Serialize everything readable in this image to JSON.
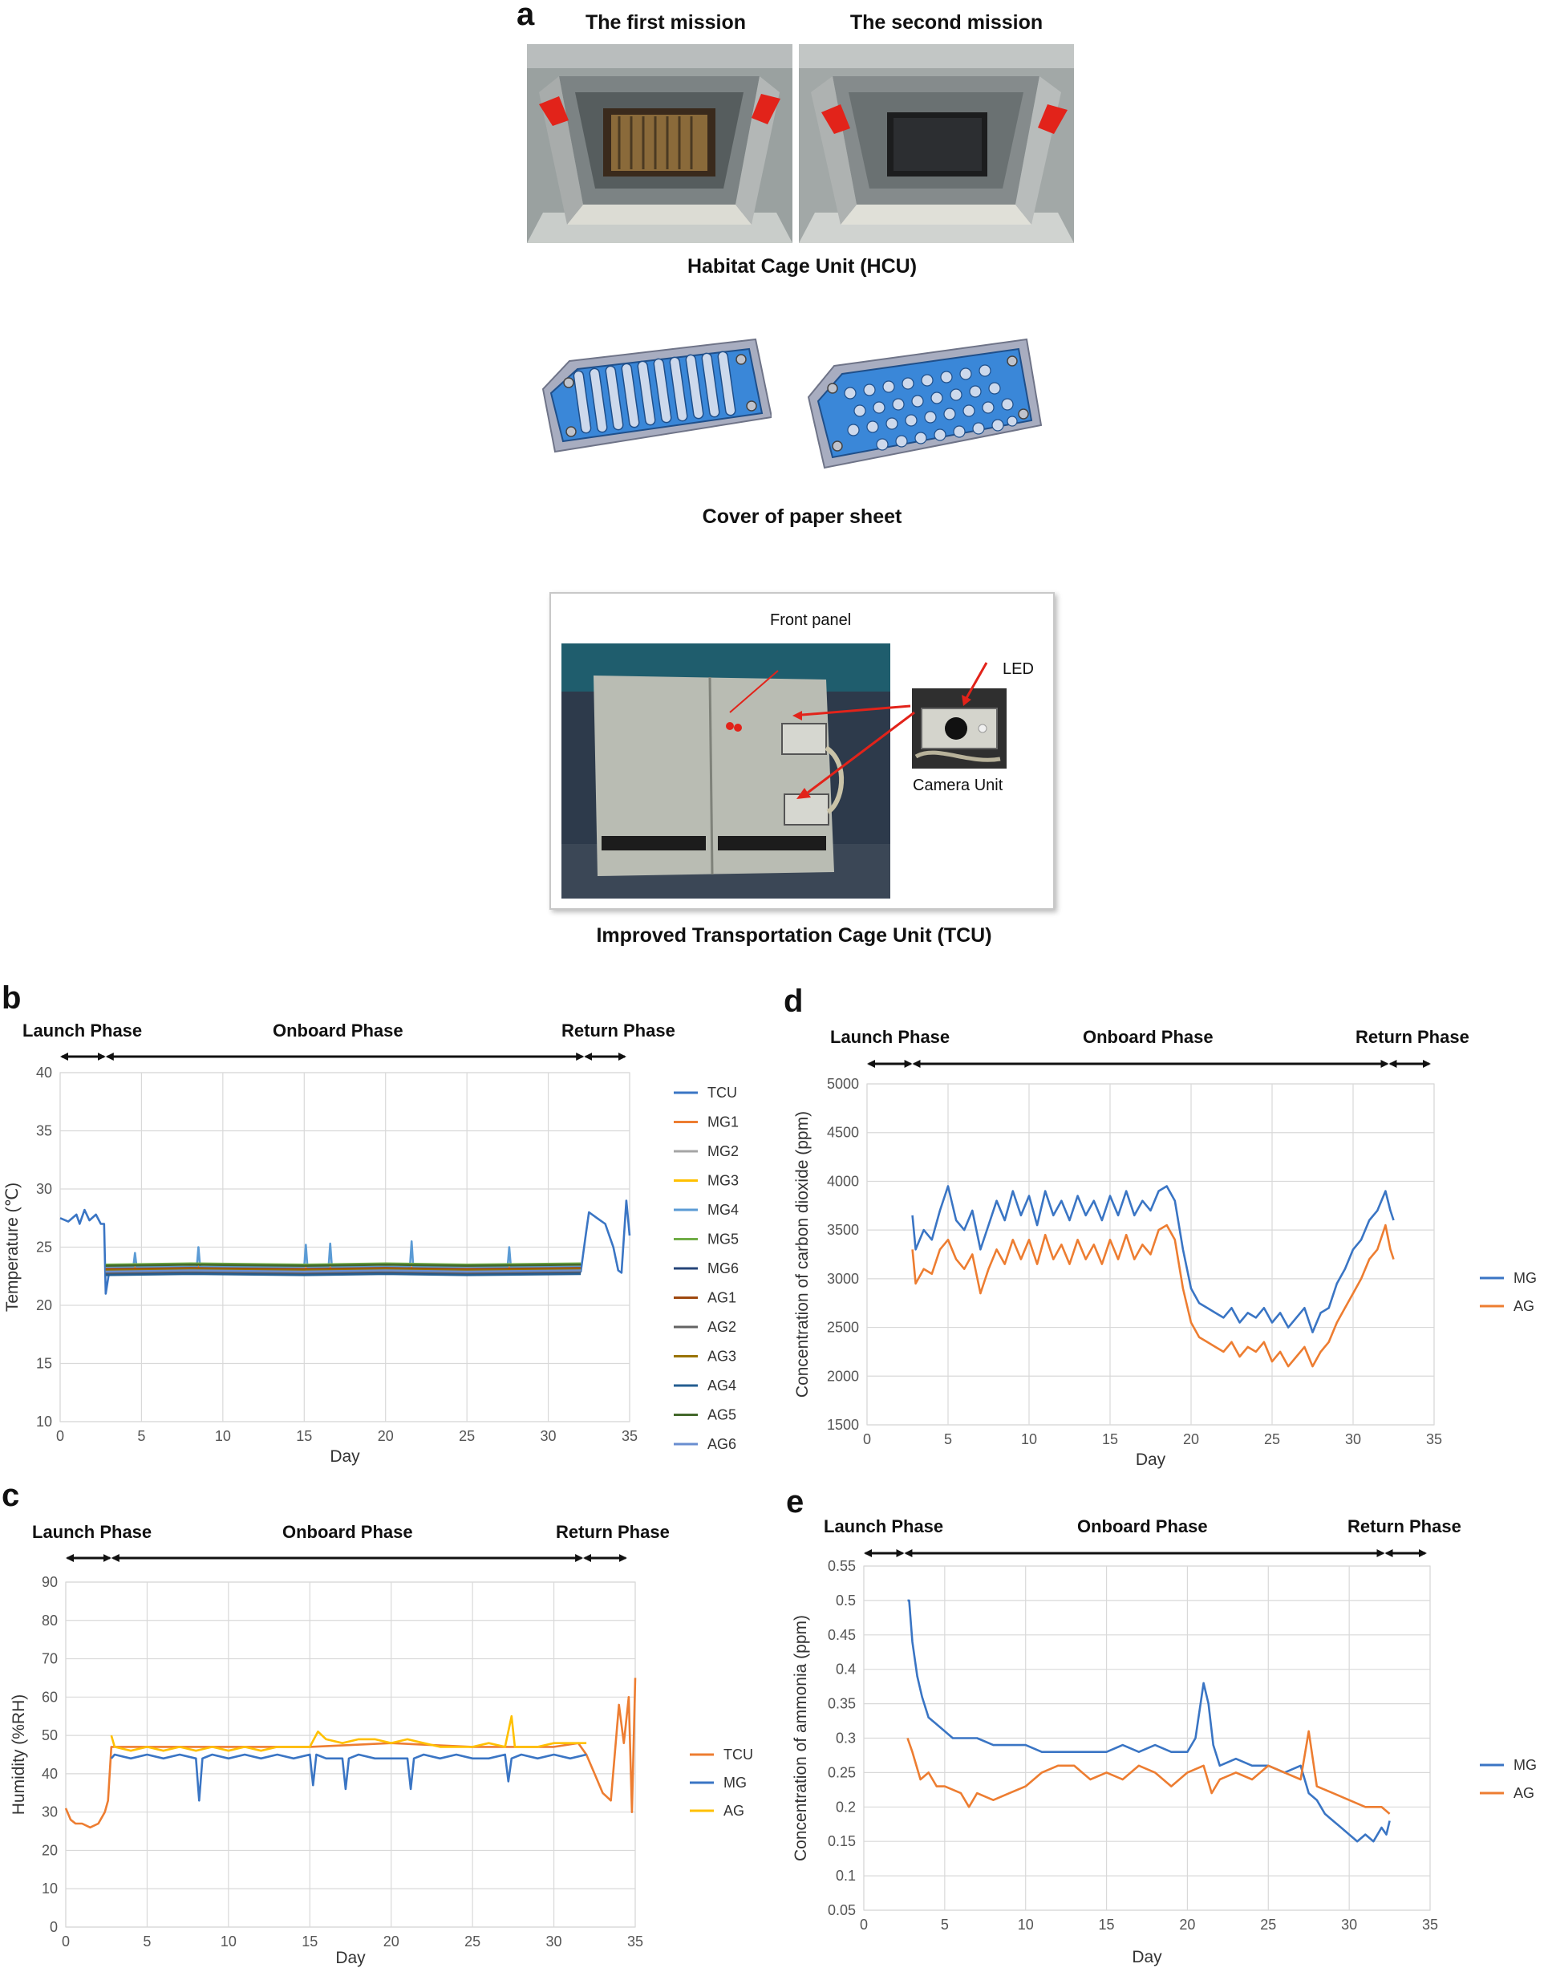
{
  "panel_a": {
    "letter": "a",
    "mission1_title": "The first mission",
    "mission2_title": "The second mission",
    "hcu_caption": "Habitat Cage Unit (HCU)",
    "cover_caption": "Cover of paper sheet",
    "tcu_caption": "Improved Transportation Cage Unit (TCU)",
    "label_front_panel": "Front panel",
    "label_led": "LED",
    "label_camera_unit": "Camera Unit"
  },
  "phases": {
    "launch": "Launch Phase",
    "onboard": "Onboard  Phase",
    "return": "Return Phase"
  },
  "chart_data": [
    {
      "id": "b",
      "letter": "b",
      "type": "line",
      "xlabel": "Day",
      "ylabel": "Temperature (℃)",
      "xlim": [
        0,
        35
      ],
      "ylim": [
        10,
        40
      ],
      "xticks": [
        0,
        5,
        10,
        15,
        20,
        25,
        30,
        35
      ],
      "yticks": [
        10,
        15,
        20,
        25,
        30,
        35,
        40
      ],
      "grid": true,
      "legend": "right",
      "series": [
        {
          "name": "TCU",
          "color": "#3a75c4",
          "x": [
            0,
            0.5,
            1,
            1.2,
            1.5,
            1.8,
            2.2,
            2.5,
            2.7,
            2.8,
            3,
            5,
            10,
            15,
            20,
            25,
            30,
            32,
            32.3,
            32.5,
            33,
            33.5,
            34,
            34.3,
            34.5,
            34.8,
            35
          ],
          "y": [
            27.5,
            27.2,
            27.8,
            27.0,
            28.2,
            27.3,
            27.8,
            27.0,
            27.0,
            21.0,
            22.8,
            22.9,
            22.8,
            22.9,
            22.8,
            22.9,
            22.8,
            22.9,
            26.0,
            28.0,
            27.5,
            27.0,
            25.0,
            23.0,
            22.8,
            29.0,
            26.0
          ]
        },
        {
          "name": "MG1",
          "color": "#ed7d31",
          "x": [
            2.8,
            8,
            15,
            20,
            25,
            32
          ],
          "y": [
            23.2,
            23.3,
            23.2,
            23.3,
            23.2,
            23.3
          ]
        },
        {
          "name": "MG2",
          "color": "#a5a5a5",
          "x": [
            2.8,
            8,
            15,
            20,
            25,
            32
          ],
          "y": [
            23.0,
            23.1,
            23.0,
            23.1,
            23.0,
            23.1
          ]
        },
        {
          "name": "MG3",
          "color": "#ffc000",
          "x": [
            2.8,
            8,
            15,
            20,
            25,
            32
          ],
          "y": [
            22.9,
            23.0,
            22.9,
            23.0,
            22.9,
            23.0
          ]
        },
        {
          "name": "MG4",
          "color": "#5b9bd5",
          "x": [
            2.8,
            4.5,
            4.6,
            4.7,
            8,
            8.4,
            8.5,
            8.6,
            15,
            15.1,
            15.2,
            16.5,
            16.6,
            16.7,
            21.5,
            21.6,
            21.7,
            27.5,
            27.6,
            27.7,
            32
          ],
          "y": [
            23.3,
            23.3,
            24.5,
            23.3,
            23.3,
            23.3,
            25.0,
            23.3,
            23.3,
            25.2,
            23.3,
            23.3,
            25.3,
            23.3,
            23.3,
            25.5,
            23.3,
            23.3,
            25.0,
            23.3,
            23.3
          ]
        },
        {
          "name": "MG5",
          "color": "#70ad47",
          "x": [
            2.8,
            8,
            15,
            20,
            25,
            32
          ],
          "y": [
            23.5,
            23.6,
            23.5,
            23.6,
            23.5,
            23.6
          ]
        },
        {
          "name": "MG6",
          "color": "#264478",
          "x": [
            2.8,
            8,
            15,
            20,
            25,
            32
          ],
          "y": [
            22.7,
            22.8,
            22.7,
            22.8,
            22.7,
            22.8
          ]
        },
        {
          "name": "AG1",
          "color": "#9e480e",
          "x": [
            2.8,
            8,
            15,
            20,
            25,
            32
          ],
          "y": [
            23.1,
            23.2,
            23.1,
            23.2,
            23.1,
            23.2
          ]
        },
        {
          "name": "AG2",
          "color": "#636363",
          "x": [
            2.8,
            8,
            15,
            20,
            25,
            32
          ],
          "y": [
            22.8,
            22.9,
            22.8,
            22.9,
            22.8,
            22.9
          ]
        },
        {
          "name": "AG3",
          "color": "#997300",
          "x": [
            2.8,
            8,
            15,
            20,
            25,
            32
          ],
          "y": [
            23.0,
            23.1,
            23.0,
            23.1,
            23.0,
            23.1
          ]
        },
        {
          "name": "AG4",
          "color": "#255e91",
          "x": [
            2.8,
            8,
            15,
            20,
            25,
            32
          ],
          "y": [
            22.6,
            22.7,
            22.6,
            22.7,
            22.6,
            22.7
          ]
        },
        {
          "name": "AG5",
          "color": "#43682b",
          "x": [
            2.8,
            8,
            15,
            20,
            25,
            32
          ],
          "y": [
            23.4,
            23.5,
            23.4,
            23.5,
            23.4,
            23.5
          ]
        },
        {
          "name": "AG6",
          "color": "#698ed0",
          "x": [
            2.8,
            8,
            15,
            20,
            25,
            32
          ],
          "y": [
            22.9,
            23.0,
            22.9,
            23.0,
            22.9,
            23.0
          ]
        }
      ]
    },
    {
      "id": "c",
      "letter": "c",
      "type": "line",
      "xlabel": "Day",
      "ylabel": "Humidity (%RH)",
      "xlim": [
        0,
        35
      ],
      "ylim": [
        0,
        90
      ],
      "xticks": [
        0,
        5,
        10,
        15,
        20,
        25,
        30,
        35
      ],
      "yticks": [
        0,
        10,
        20,
        30,
        40,
        50,
        60,
        70,
        80,
        90
      ],
      "grid": true,
      "legend": "right",
      "series": [
        {
          "name": "TCU",
          "color": "#ed7d31",
          "x": [
            0,
            0.3,
            0.6,
            1,
            1.5,
            2,
            2.4,
            2.6,
            2.8,
            3,
            5,
            10,
            15,
            20,
            25,
            30,
            31.5,
            32,
            32.5,
            33,
            33.5,
            34,
            34.3,
            34.6,
            34.8,
            35
          ],
          "y": [
            31,
            28,
            27,
            27,
            26,
            27,
            30,
            33,
            47,
            47,
            47,
            47,
            47,
            48,
            47,
            47,
            48,
            45,
            40,
            35,
            33,
            58,
            48,
            60,
            30,
            65
          ]
        },
        {
          "name": "MG",
          "color": "#3a75c4",
          "x": [
            2.8,
            3,
            4,
            5,
            6,
            7,
            8,
            8.2,
            8.4,
            9,
            10,
            11,
            12,
            13,
            14,
            15,
            15.2,
            15.4,
            16,
            17,
            17.2,
            17.4,
            18,
            19,
            20,
            21,
            21.2,
            21.4,
            22,
            23,
            24,
            25,
            26,
            27,
            27.2,
            27.4,
            28,
            29,
            30,
            31,
            32
          ],
          "y": [
            44,
            45,
            44,
            45,
            44,
            45,
            44,
            33,
            44,
            45,
            44,
            45,
            44,
            45,
            44,
            45,
            37,
            45,
            44,
            44,
            36,
            44,
            45,
            44,
            44,
            44,
            36,
            44,
            45,
            44,
            45,
            44,
            44,
            45,
            38,
            44,
            45,
            44,
            45,
            44,
            45
          ]
        },
        {
          "name": "AG",
          "color": "#ffc000",
          "x": [
            2.8,
            3,
            4,
            5,
            6,
            7,
            8,
            9,
            10,
            11,
            12,
            13,
            14,
            15,
            15.5,
            16,
            17,
            18,
            19,
            20,
            21,
            22,
            23,
            24,
            25,
            26,
            27,
            27.4,
            27.6,
            28,
            29,
            30,
            31,
            32
          ],
          "y": [
            50,
            47,
            46,
            47,
            46,
            47,
            46,
            47,
            46,
            47,
            46,
            47,
            47,
            47,
            51,
            49,
            48,
            49,
            49,
            48,
            49,
            48,
            47,
            47,
            47,
            48,
            47,
            55,
            47,
            47,
            47,
            48,
            48,
            48
          ]
        }
      ]
    },
    {
      "id": "d",
      "letter": "d",
      "type": "line",
      "xlabel": "Day",
      "ylabel": "Concentration  of carbon dioxide (ppm)",
      "xlim": [
        0,
        35
      ],
      "ylim": [
        1500,
        5000
      ],
      "xticks": [
        0,
        5,
        10,
        15,
        20,
        25,
        30,
        35
      ],
      "yticks": [
        1500,
        2000,
        2500,
        3000,
        3500,
        4000,
        4500,
        5000
      ],
      "grid": true,
      "legend": "right",
      "series": [
        {
          "name": "MG",
          "color": "#3a75c4",
          "x": [
            2.8,
            3,
            3.5,
            4,
            4.5,
            5,
            5.5,
            6,
            6.5,
            7,
            7.5,
            8,
            8.5,
            9,
            9.5,
            10,
            10.5,
            11,
            11.5,
            12,
            12.5,
            13,
            13.5,
            14,
            14.5,
            15,
            15.5,
            16,
            16.5,
            17,
            17.5,
            18,
            18.5,
            19,
            19.5,
            20,
            20.5,
            21,
            21.5,
            22,
            22.5,
            23,
            23.5,
            24,
            24.5,
            25,
            25.5,
            26,
            26.5,
            27,
            27.5,
            28,
            28.5,
            29,
            29.5,
            30,
            30.5,
            31,
            31.5,
            32,
            32.3,
            32.5
          ],
          "y": [
            3650,
            3300,
            3500,
            3400,
            3700,
            3950,
            3600,
            3500,
            3700,
            3300,
            3550,
            3800,
            3600,
            3900,
            3650,
            3850,
            3550,
            3900,
            3650,
            3800,
            3600,
            3850,
            3650,
            3800,
            3600,
            3850,
            3650,
            3900,
            3650,
            3800,
            3700,
            3900,
            3950,
            3800,
            3300,
            2900,
            2750,
            2700,
            2650,
            2600,
            2700,
            2550,
            2650,
            2600,
            2700,
            2550,
            2650,
            2500,
            2600,
            2700,
            2450,
            2650,
            2700,
            2950,
            3100,
            3300,
            3400,
            3600,
            3700,
            3900,
            3700,
            3600
          ]
        },
        {
          "name": "AG",
          "color": "#ed7d31",
          "x": [
            2.8,
            3,
            3.5,
            4,
            4.5,
            5,
            5.5,
            6,
            6.5,
            7,
            7.5,
            8,
            8.5,
            9,
            9.5,
            10,
            10.5,
            11,
            11.5,
            12,
            12.5,
            13,
            13.5,
            14,
            14.5,
            15,
            15.5,
            16,
            16.5,
            17,
            17.5,
            18,
            18.5,
            19,
            19.5,
            20,
            20.5,
            21,
            21.5,
            22,
            22.5,
            23,
            23.5,
            24,
            24.5,
            25,
            25.5,
            26,
            26.5,
            27,
            27.5,
            28,
            28.5,
            29,
            29.5,
            30,
            30.5,
            31,
            31.5,
            32,
            32.3,
            32.5
          ],
          "y": [
            3300,
            2950,
            3100,
            3050,
            3300,
            3400,
            3200,
            3100,
            3250,
            2850,
            3100,
            3300,
            3150,
            3400,
            3200,
            3400,
            3150,
            3450,
            3200,
            3350,
            3150,
            3400,
            3200,
            3350,
            3150,
            3400,
            3200,
            3450,
            3200,
            3350,
            3250,
            3500,
            3550,
            3400,
            2900,
            2550,
            2400,
            2350,
            2300,
            2250,
            2350,
            2200,
            2300,
            2250,
            2350,
            2150,
            2250,
            2100,
            2200,
            2300,
            2100,
            2250,
            2350,
            2550,
            2700,
            2850,
            3000,
            3200,
            3300,
            3550,
            3300,
            3200
          ]
        }
      ]
    },
    {
      "id": "e",
      "letter": "e",
      "type": "line",
      "xlabel": "Day",
      "ylabel": "Concentration of ammonia (ppm)",
      "xlim": [
        0,
        35
      ],
      "ylim": [
        0.05,
        0.55
      ],
      "xticks": [
        0,
        5,
        10,
        15,
        20,
        25,
        30,
        35
      ],
      "yticks": [
        0.05,
        0.1,
        0.15,
        0.2,
        0.25,
        0.3,
        0.35,
        0.4,
        0.45,
        0.5,
        0.55
      ],
      "grid": true,
      "legend": "right",
      "series": [
        {
          "name": "MG",
          "color": "#3a75c4",
          "x": [
            2.7,
            2.8,
            3,
            3.3,
            3.6,
            4,
            4.5,
            5,
            5.5,
            6,
            7,
            8,
            9,
            10,
            11,
            12,
            13,
            14,
            15,
            16,
            17,
            18,
            19,
            20,
            20.5,
            21,
            21.3,
            21.6,
            22,
            23,
            24,
            25,
            26,
            27,
            27.5,
            28,
            28.5,
            29,
            29.5,
            30,
            30.5,
            31,
            31.5,
            32,
            32.3,
            32.5
          ],
          "y": [
            0.5,
            0.5,
            0.44,
            0.39,
            0.36,
            0.33,
            0.32,
            0.31,
            0.3,
            0.3,
            0.3,
            0.29,
            0.29,
            0.29,
            0.28,
            0.28,
            0.28,
            0.28,
            0.28,
            0.29,
            0.28,
            0.29,
            0.28,
            0.28,
            0.3,
            0.38,
            0.35,
            0.29,
            0.26,
            0.27,
            0.26,
            0.26,
            0.25,
            0.26,
            0.22,
            0.21,
            0.19,
            0.18,
            0.17,
            0.16,
            0.15,
            0.16,
            0.15,
            0.17,
            0.16,
            0.18
          ]
        },
        {
          "name": "AG",
          "color": "#ed7d31",
          "x": [
            2.7,
            3,
            3.5,
            4,
            4.5,
            5,
            6,
            6.5,
            7,
            8,
            9,
            10,
            11,
            12,
            13,
            14,
            15,
            16,
            17,
            18,
            19,
            20,
            21,
            21.5,
            22,
            23,
            24,
            25,
            26,
            27,
            27.5,
            28,
            29,
            30,
            31,
            32,
            32.5
          ],
          "y": [
            0.3,
            0.28,
            0.24,
            0.25,
            0.23,
            0.23,
            0.22,
            0.2,
            0.22,
            0.21,
            0.22,
            0.23,
            0.25,
            0.26,
            0.26,
            0.24,
            0.25,
            0.24,
            0.26,
            0.25,
            0.23,
            0.25,
            0.26,
            0.22,
            0.24,
            0.25,
            0.24,
            0.26,
            0.25,
            0.24,
            0.31,
            0.23,
            0.22,
            0.21,
            0.2,
            0.2,
            0.19
          ]
        }
      ]
    }
  ]
}
